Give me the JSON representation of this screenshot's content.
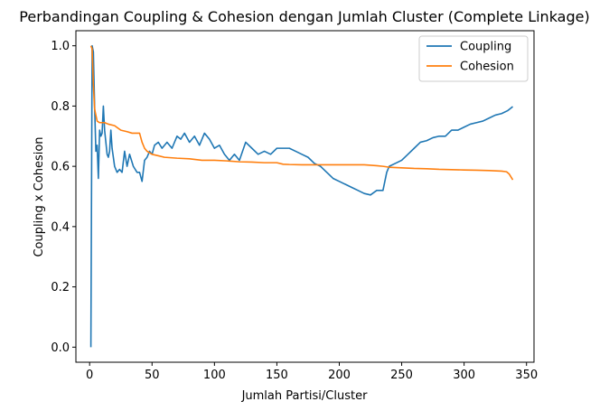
{
  "chart_data": {
    "type": "line",
    "title": "Perbandingan Coupling & Cohesion dengan Jumlah Cluster (Complete Linkage)",
    "xlabel": "Jumlah Partisi/Cluster",
    "ylabel": "Coupling x Cohesion",
    "xlim": [
      -11,
      356
    ],
    "ylim": [
      -0.05,
      1.05
    ],
    "xticks": [
      0,
      50,
      100,
      150,
      200,
      250,
      300,
      350
    ],
    "yticks": [
      0.0,
      0.2,
      0.4,
      0.6,
      0.8,
      1.0
    ],
    "ytick_labels": [
      "0.0",
      "0.2",
      "0.4",
      "0.6",
      "0.8",
      "1.0"
    ],
    "grid": false,
    "legend_position": "upper right",
    "series": [
      {
        "name": "Coupling",
        "color": "#1f77b4",
        "points": [
          [
            1,
            0.0
          ],
          [
            2,
            1.0
          ],
          [
            3,
            0.98
          ],
          [
            4,
            0.8
          ],
          [
            5,
            0.65
          ],
          [
            6,
            0.67
          ],
          [
            7,
            0.56
          ],
          [
            8,
            0.72
          ],
          [
            9,
            0.7
          ],
          [
            10,
            0.71
          ],
          [
            11,
            0.8
          ],
          [
            12,
            0.72
          ],
          [
            14,
            0.64
          ],
          [
            15,
            0.63
          ],
          [
            16,
            0.65
          ],
          [
            17,
            0.72
          ],
          [
            18,
            0.66
          ],
          [
            20,
            0.6
          ],
          [
            22,
            0.58
          ],
          [
            24,
            0.59
          ],
          [
            26,
            0.58
          ],
          [
            28,
            0.65
          ],
          [
            30,
            0.6
          ],
          [
            32,
            0.64
          ],
          [
            35,
            0.6
          ],
          [
            38,
            0.58
          ],
          [
            40,
            0.58
          ],
          [
            42,
            0.55
          ],
          [
            44,
            0.62
          ],
          [
            46,
            0.63
          ],
          [
            48,
            0.65
          ],
          [
            50,
            0.64
          ],
          [
            52,
            0.67
          ],
          [
            55,
            0.68
          ],
          [
            58,
            0.66
          ],
          [
            62,
            0.68
          ],
          [
            66,
            0.66
          ],
          [
            70,
            0.7
          ],
          [
            73,
            0.69
          ],
          [
            76,
            0.71
          ],
          [
            80,
            0.68
          ],
          [
            84,
            0.7
          ],
          [
            88,
            0.67
          ],
          [
            92,
            0.71
          ],
          [
            96,
            0.69
          ],
          [
            100,
            0.66
          ],
          [
            104,
            0.67
          ],
          [
            108,
            0.64
          ],
          [
            112,
            0.62
          ],
          [
            116,
            0.64
          ],
          [
            120,
            0.62
          ],
          [
            125,
            0.68
          ],
          [
            130,
            0.66
          ],
          [
            135,
            0.64
          ],
          [
            140,
            0.65
          ],
          [
            145,
            0.64
          ],
          [
            150,
            0.66
          ],
          [
            155,
            0.66
          ],
          [
            160,
            0.66
          ],
          [
            165,
            0.65
          ],
          [
            170,
            0.64
          ],
          [
            175,
            0.63
          ],
          [
            180,
            0.61
          ],
          [
            185,
            0.6
          ],
          [
            190,
            0.58
          ],
          [
            195,
            0.56
          ],
          [
            200,
            0.55
          ],
          [
            205,
            0.54
          ],
          [
            210,
            0.53
          ],
          [
            215,
            0.52
          ],
          [
            220,
            0.51
          ],
          [
            225,
            0.505
          ],
          [
            230,
            0.52
          ],
          [
            235,
            0.52
          ],
          [
            238,
            0.58
          ],
          [
            240,
            0.6
          ],
          [
            245,
            0.61
          ],
          [
            250,
            0.62
          ],
          [
            255,
            0.64
          ],
          [
            260,
            0.66
          ],
          [
            265,
            0.68
          ],
          [
            270,
            0.685
          ],
          [
            275,
            0.695
          ],
          [
            280,
            0.7
          ],
          [
            285,
            0.7
          ],
          [
            290,
            0.72
          ],
          [
            295,
            0.72
          ],
          [
            300,
            0.73
          ],
          [
            305,
            0.74
          ],
          [
            310,
            0.745
          ],
          [
            315,
            0.75
          ],
          [
            320,
            0.76
          ],
          [
            325,
            0.77
          ],
          [
            330,
            0.775
          ],
          [
            335,
            0.785
          ],
          [
            338,
            0.795
          ],
          [
            339,
            0.798
          ]
        ]
      },
      {
        "name": "Cohesion",
        "color": "#ff7f0e",
        "points": [
          [
            1,
            1.0
          ],
          [
            2,
            0.99
          ],
          [
            3,
            0.87
          ],
          [
            4,
            0.79
          ],
          [
            5,
            0.77
          ],
          [
            6,
            0.75
          ],
          [
            8,
            0.745
          ],
          [
            12,
            0.745
          ],
          [
            15,
            0.74
          ],
          [
            20,
            0.735
          ],
          [
            25,
            0.72
          ],
          [
            30,
            0.715
          ],
          [
            34,
            0.71
          ],
          [
            40,
            0.71
          ],
          [
            42,
            0.68
          ],
          [
            44,
            0.66
          ],
          [
            46,
            0.65
          ],
          [
            50,
            0.64
          ],
          [
            55,
            0.635
          ],
          [
            60,
            0.63
          ],
          [
            70,
            0.627
          ],
          [
            80,
            0.625
          ],
          [
            90,
            0.62
          ],
          [
            100,
            0.62
          ],
          [
            110,
            0.618
          ],
          [
            120,
            0.615
          ],
          [
            130,
            0.614
          ],
          [
            140,
            0.612
          ],
          [
            150,
            0.612
          ],
          [
            155,
            0.607
          ],
          [
            160,
            0.606
          ],
          [
            170,
            0.605
          ],
          [
            180,
            0.605
          ],
          [
            190,
            0.605
          ],
          [
            200,
            0.605
          ],
          [
            210,
            0.605
          ],
          [
            220,
            0.605
          ],
          [
            230,
            0.602
          ],
          [
            235,
            0.6
          ],
          [
            240,
            0.597
          ],
          [
            250,
            0.595
          ],
          [
            260,
            0.593
          ],
          [
            270,
            0.592
          ],
          [
            280,
            0.59
          ],
          [
            290,
            0.589
          ],
          [
            300,
            0.588
          ],
          [
            310,
            0.587
          ],
          [
            320,
            0.586
          ],
          [
            330,
            0.584
          ],
          [
            334,
            0.582
          ],
          [
            336,
            0.575
          ],
          [
            338,
            0.562
          ],
          [
            339,
            0.555
          ]
        ]
      }
    ]
  }
}
